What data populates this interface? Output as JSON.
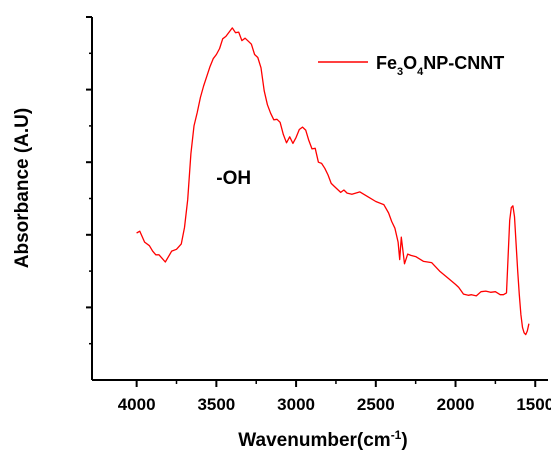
{
  "chart_data": {
    "type": "line",
    "title": "",
    "xlabel": {
      "main": "Wavenumber(cm",
      "sup": "-1",
      "close": ")"
    },
    "ylabel": "Absorbance (A.U)",
    "x_reversed": true,
    "xlim": [
      4280,
      1420
    ],
    "ylim": [
      0,
      1
    ],
    "y_tick_labels_shown": false,
    "x_ticks": [
      4000,
      3500,
      3000,
      2500,
      2000,
      1500
    ],
    "y_ticks": [
      0.2,
      0.4,
      0.6,
      0.8,
      1.0
    ],
    "grid": false,
    "legend_position": "top-right",
    "annotations": [
      {
        "text": "-OH",
        "x": 3400,
        "y": 0.54
      }
    ],
    "series": [
      {
        "name": {
          "parts": [
            [
              "Fe",
              ""
            ],
            [
              "3",
              "sub"
            ],
            [
              "O",
              ""
            ],
            [
              "4",
              "sub"
            ],
            [
              "NP-CNNT",
              ""
            ]
          ]
        },
        "color": "#ff0000",
        "points": [
          [
            4000,
            0.405
          ],
          [
            3980,
            0.41
          ],
          [
            3950,
            0.38
          ],
          [
            3920,
            0.37
          ],
          [
            3900,
            0.355
          ],
          [
            3880,
            0.345
          ],
          [
            3860,
            0.345
          ],
          [
            3840,
            0.335
          ],
          [
            3820,
            0.325
          ],
          [
            3800,
            0.34
          ],
          [
            3780,
            0.355
          ],
          [
            3750,
            0.36
          ],
          [
            3720,
            0.375
          ],
          [
            3700,
            0.42
          ],
          [
            3680,
            0.5
          ],
          [
            3660,
            0.62
          ],
          [
            3640,
            0.7
          ],
          [
            3620,
            0.74
          ],
          [
            3600,
            0.775
          ],
          [
            3580,
            0.81
          ],
          [
            3560,
            0.84
          ],
          [
            3540,
            0.86
          ],
          [
            3520,
            0.885
          ],
          [
            3500,
            0.9
          ],
          [
            3480,
            0.91
          ],
          [
            3460,
            0.94
          ],
          [
            3440,
            0.95
          ],
          [
            3420,
            0.955
          ],
          [
            3400,
            0.97
          ],
          [
            3380,
            0.96
          ],
          [
            3360,
            0.955
          ],
          [
            3340,
            0.935
          ],
          [
            3320,
            0.945
          ],
          [
            3300,
            0.93
          ],
          [
            3280,
            0.925
          ],
          [
            3260,
            0.9
          ],
          [
            3240,
            0.885
          ],
          [
            3220,
            0.86
          ],
          [
            3200,
            0.8
          ],
          [
            3180,
            0.755
          ],
          [
            3160,
            0.735
          ],
          [
            3140,
            0.72
          ],
          [
            3120,
            0.715
          ],
          [
            3100,
            0.71
          ],
          [
            3080,
            0.68
          ],
          [
            3060,
            0.65
          ],
          [
            3040,
            0.67
          ],
          [
            3020,
            0.655
          ],
          [
            3000,
            0.665
          ],
          [
            2980,
            0.69
          ],
          [
            2960,
            0.7
          ],
          [
            2940,
            0.685
          ],
          [
            2920,
            0.66
          ],
          [
            2900,
            0.64
          ],
          [
            2880,
            0.635
          ],
          [
            2860,
            0.6
          ],
          [
            2840,
            0.6
          ],
          [
            2820,
            0.58
          ],
          [
            2800,
            0.565
          ],
          [
            2780,
            0.545
          ],
          [
            2760,
            0.53
          ],
          [
            2740,
            0.525
          ],
          [
            2720,
            0.52
          ],
          [
            2700,
            0.52
          ],
          [
            2680,
            0.515
          ],
          [
            2650,
            0.515
          ],
          [
            2600,
            0.515
          ],
          [
            2550,
            0.505
          ],
          [
            2500,
            0.495
          ],
          [
            2450,
            0.48
          ],
          [
            2420,
            0.46
          ],
          [
            2400,
            0.44
          ],
          [
            2380,
            0.415
          ],
          [
            2360,
            0.38
          ],
          [
            2350,
            0.335
          ],
          [
            2340,
            0.39
          ],
          [
            2320,
            0.32
          ],
          [
            2300,
            0.35
          ],
          [
            2280,
            0.34
          ],
          [
            2250,
            0.34
          ],
          [
            2200,
            0.33
          ],
          [
            2150,
            0.32
          ],
          [
            2100,
            0.3
          ],
          [
            2050,
            0.285
          ],
          [
            2000,
            0.26
          ],
          [
            1980,
            0.255
          ],
          [
            1950,
            0.24
          ],
          [
            1920,
            0.23
          ],
          [
            1900,
            0.235
          ],
          [
            1870,
            0.235
          ],
          [
            1840,
            0.24
          ],
          [
            1810,
            0.245
          ],
          [
            1780,
            0.245
          ],
          [
            1750,
            0.24
          ],
          [
            1720,
            0.235
          ],
          [
            1700,
            0.235
          ],
          [
            1680,
            0.24
          ],
          [
            1670,
            0.34
          ],
          [
            1660,
            0.44
          ],
          [
            1650,
            0.475
          ],
          [
            1640,
            0.48
          ],
          [
            1630,
            0.45
          ],
          [
            1620,
            0.375
          ],
          [
            1610,
            0.3
          ],
          [
            1600,
            0.235
          ],
          [
            1590,
            0.18
          ],
          [
            1580,
            0.145
          ],
          [
            1570,
            0.13
          ],
          [
            1560,
            0.125
          ],
          [
            1550,
            0.135
          ],
          [
            1540,
            0.155
          ]
        ]
      }
    ]
  }
}
